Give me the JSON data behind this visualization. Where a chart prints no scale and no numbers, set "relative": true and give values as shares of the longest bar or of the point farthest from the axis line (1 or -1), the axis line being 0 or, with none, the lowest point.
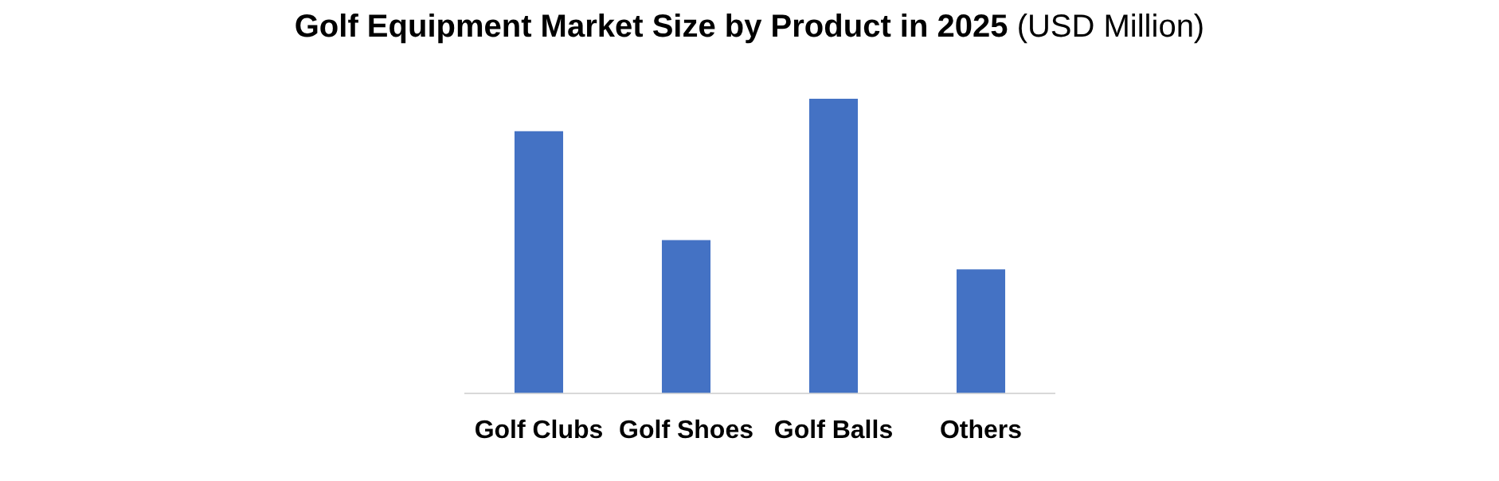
{
  "chart_data": {
    "type": "bar",
    "title": "Golf Equipment Market Size by Product in 2025",
    "subtitle": "(USD Million)",
    "categories": [
      "Golf Clubs",
      "Golf Shoes",
      "Golf Balls",
      "Others"
    ],
    "values": [
      0.89,
      0.52,
      1,
      0.42
    ],
    "color": "#4472c4",
    "relative": true,
    "grid": false,
    "legend": false
  }
}
